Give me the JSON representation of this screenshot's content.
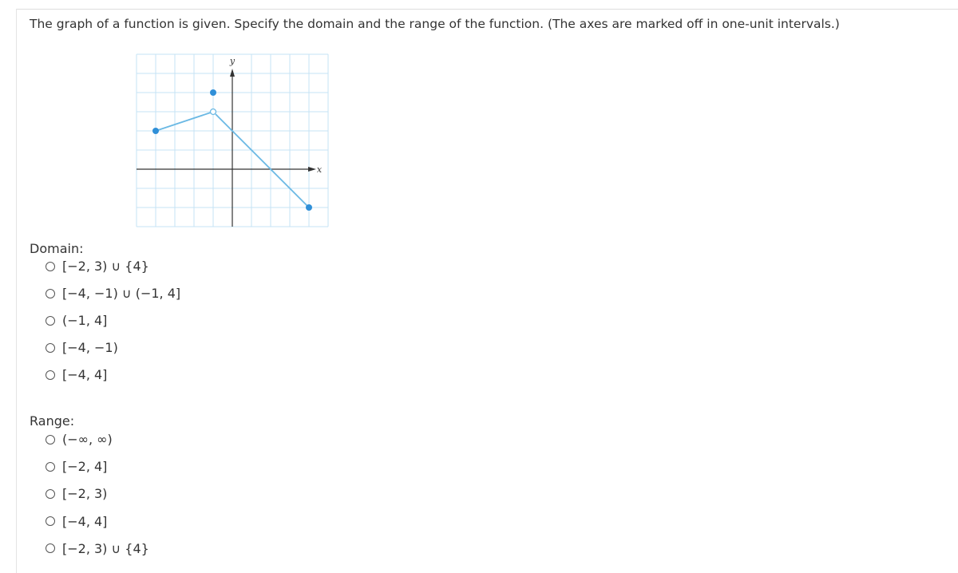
{
  "question": "The graph of a function is given. Specify the domain and the range of the function. (The axes are marked off in one-unit intervals.)",
  "graph": {
    "y_label": "y",
    "x_label": "x"
  },
  "domain": {
    "label": "Domain:",
    "options": [
      "[−2, 3) ∪ {4}",
      "[−4, −1) ∪ (−1, 4]",
      "(−1, 4]",
      "[−4, −1)",
      "[−4, 4]"
    ]
  },
  "range": {
    "label": "Range:",
    "options": [
      "(−∞, ∞)",
      "[−2, 4]",
      "[−2, 3)",
      "[−4, 4]",
      "[−2, 3) ∪ {4}"
    ]
  }
}
